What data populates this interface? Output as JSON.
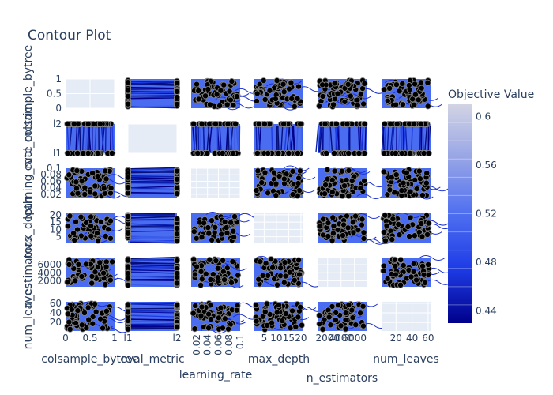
{
  "chart_data": {
    "type": "contour",
    "title": "Contour Plot",
    "params": [
      {
        "name": "colsample_bytree",
        "kind": "num",
        "range": [
          0,
          1
        ],
        "ticks": [
          0,
          0.5,
          1
        ],
        "tick_labels": [
          "0",
          "0.5",
          "1"
        ]
      },
      {
        "name": "eval_metric",
        "kind": "cat",
        "range": [
          0,
          1
        ],
        "ticks": [
          0,
          1
        ],
        "tick_labels": [
          "l1",
          "l2"
        ]
      },
      {
        "name": "learning_rate",
        "kind": "num",
        "range": [
          0.01,
          0.1
        ],
        "ticks": [
          0.02,
          0.04,
          0.06,
          0.08,
          0.1
        ],
        "tick_labels": [
          "0.02",
          "0.04",
          "0.06",
          "0.08",
          "0.1"
        ]
      },
      {
        "name": "max_depth",
        "kind": "num",
        "range": [
          1,
          21
        ],
        "ticks": [
          5,
          10,
          15,
          20
        ],
        "tick_labels": [
          "5",
          "10",
          "15",
          "20"
        ]
      },
      {
        "name": "n_estimators",
        "kind": "num",
        "range": [
          500,
          7800
        ],
        "ticks": [
          2000,
          4000,
          6000
        ],
        "tick_labels": [
          "2000",
          "4000",
          "6000"
        ]
      },
      {
        "name": "num_leaves",
        "kind": "num",
        "range": [
          2,
          63
        ],
        "ticks": [
          20,
          40,
          60
        ],
        "tick_labels": [
          "20",
          "40",
          "60"
        ]
      }
    ],
    "colorbar": {
      "title": "Objective Value",
      "range": [
        0.43,
        0.61
      ],
      "ticks": [
        0.44,
        0.48,
        0.52,
        0.56,
        0.6
      ],
      "tick_labels": [
        "0.44",
        "0.48",
        "0.52",
        "0.56",
        "0.6"
      ],
      "colors": [
        "#00008b",
        "#1e3ce6",
        "#4f6ff0",
        "#96a4e6",
        "#d2d4e4"
      ]
    },
    "trials_per_panel": 60,
    "grid": true,
    "legend": "right"
  }
}
